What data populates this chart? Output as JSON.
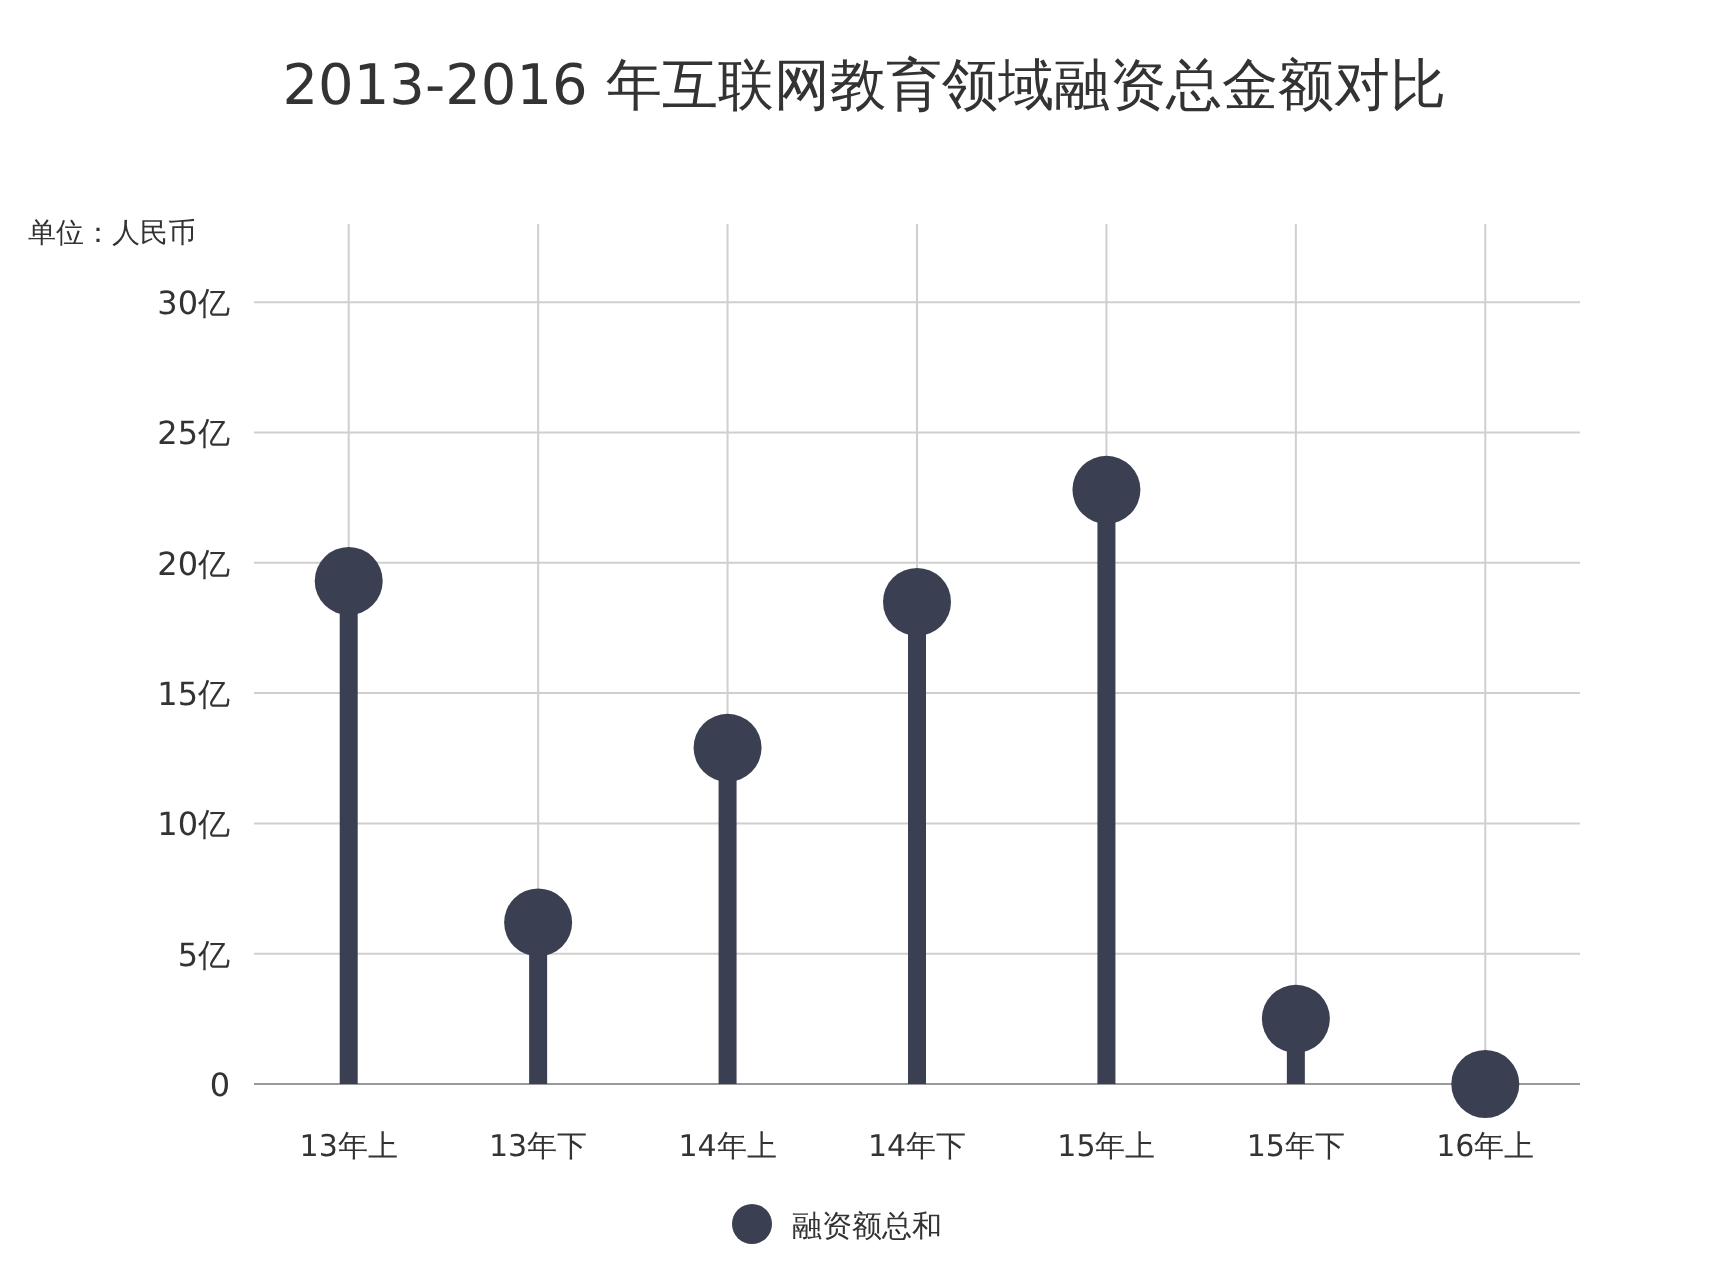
{
  "chart_data": {
    "type": "lollipop",
    "title": "2013-2016 年互联网教育领域融资总金额对比",
    "ylabel": "单位：人民币",
    "categories": [
      "13年上",
      "13年下",
      "14年上",
      "14年下",
      "15年上",
      "15年下",
      "16年上"
    ],
    "series": [
      {
        "name": "融资额总和",
        "color": "#3a3f52",
        "values": [
          19.3,
          6.2,
          12.9,
          18.5,
          22.8,
          2.5,
          0
        ]
      }
    ],
    "ylim": [
      0,
      33
    ],
    "yticks": [
      0,
      {
        "value": 5,
        "label": "5亿"
      },
      {
        "value": 10,
        "label": "10亿"
      },
      {
        "value": 15,
        "label": "15亿"
      },
      {
        "value": 20,
        "label": "20亿"
      },
      {
        "value": 25,
        "label": "25亿"
      },
      {
        "value": 30,
        "label": "30亿"
      }
    ],
    "grid": true,
    "legend": "bottom"
  }
}
